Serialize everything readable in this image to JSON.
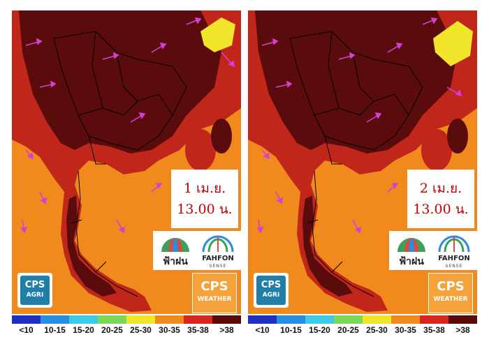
{
  "panels": [
    {
      "id": "left",
      "date_label": "1 เม.ย.",
      "time_label": "13.00 น."
    },
    {
      "id": "right",
      "date_label": "2 เม.ย.",
      "time_label": "13.00 น."
    }
  ],
  "logos": {
    "fahfon_thai": "ฟ้าฝน",
    "fahfon_english": "FAHFON",
    "fahfon_sense": "SENSE",
    "cps_agri_top": "CPS",
    "cps_agri_bottom": "AGRI",
    "cps_weather_top": "CPS",
    "cps_weather_bottom": "WEATHER"
  },
  "legend": {
    "labels": [
      "<10",
      "10-15",
      "15-20",
      "20-25",
      "25-30",
      "30-35",
      "35-38",
      ">38"
    ],
    "colors": [
      "#1f2fbf",
      "#2a8ee0",
      "#3ec9e6",
      "#7ad95a",
      "#f2e62a",
      "#f08a1c",
      "#d6261e",
      "#5a0a0a"
    ]
  },
  "map_colors": {
    "sea": "#f08a1c",
    "land_hot": "#c0261a",
    "land_very_hot": "#5a0c0c",
    "cool_patch": "#f2e62a",
    "wind_arrow": "#d63fd6",
    "border": "#000000"
  }
}
